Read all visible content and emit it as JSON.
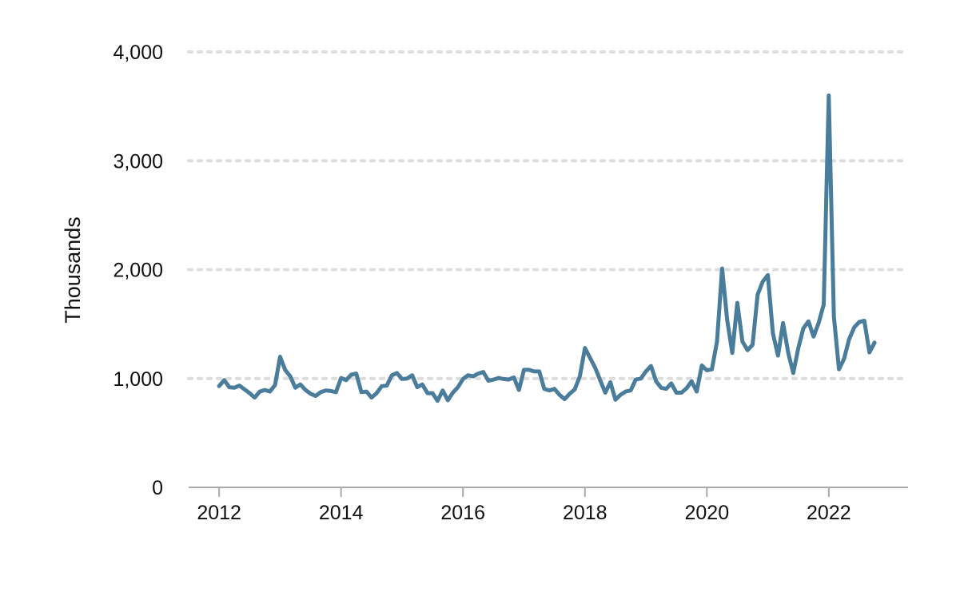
{
  "chart_data": {
    "type": "line",
    "title": "",
    "xlabel": "",
    "ylabel": "Thousands",
    "xlim": [
      2011.5,
      2023.3
    ],
    "ylim": [
      0,
      4000
    ],
    "grid": "horizontal dotted",
    "legend": "none",
    "colors": {
      "line": "#4a7c9c",
      "grid": "#dddddd",
      "axis": "#aaaaaa"
    },
    "x_ticks": [
      {
        "value": 2012,
        "label": "2012"
      },
      {
        "value": 2014,
        "label": "2014"
      },
      {
        "value": 2016,
        "label": "2016"
      },
      {
        "value": 2018,
        "label": "2018"
      },
      {
        "value": 2020,
        "label": "2020"
      },
      {
        "value": 2022,
        "label": "2022"
      }
    ],
    "y_ticks": [
      {
        "value": 0,
        "label": "0"
      },
      {
        "value": 1000,
        "label": "1,000"
      },
      {
        "value": 2000,
        "label": "2,000"
      },
      {
        "value": 3000,
        "label": "3,000"
      },
      {
        "value": 4000,
        "label": "4,000"
      }
    ],
    "series": [
      {
        "x": [
          2012.0,
          2012.083,
          2012.167,
          2012.25,
          2012.333,
          2012.417,
          2012.5,
          2012.583,
          2012.667,
          2012.75,
          2012.833,
          2012.917,
          2013.0,
          2013.083,
          2013.167,
          2013.25,
          2013.333,
          2013.417,
          2013.5,
          2013.583,
          2013.667,
          2013.75,
          2013.833,
          2013.917,
          2014.0,
          2014.083,
          2014.167,
          2014.25,
          2014.333,
          2014.417,
          2014.5,
          2014.583,
          2014.667,
          2014.75,
          2014.833,
          2014.917,
          2015.0,
          2015.083,
          2015.167,
          2015.25,
          2015.333,
          2015.417,
          2015.5,
          2015.583,
          2015.667,
          2015.75,
          2015.833,
          2015.917,
          2016.0,
          2016.083,
          2016.167,
          2016.25,
          2016.333,
          2016.417,
          2016.5,
          2016.583,
          2016.667,
          2016.75,
          2016.833,
          2016.917,
          2017.0,
          2017.083,
          2017.167,
          2017.25,
          2017.333,
          2017.417,
          2017.5,
          2017.583,
          2017.667,
          2017.75,
          2017.833,
          2017.917,
          2018.0,
          2018.083,
          2018.167,
          2018.25,
          2018.333,
          2018.417,
          2018.5,
          2018.583,
          2018.667,
          2018.75,
          2018.833,
          2018.917,
          2019.0,
          2019.083,
          2019.167,
          2019.25,
          2019.333,
          2019.417,
          2019.5,
          2019.583,
          2019.667,
          2019.75,
          2019.833,
          2019.917,
          2020.0,
          2020.083,
          2020.167,
          2020.25,
          2020.333,
          2020.417,
          2020.5,
          2020.583,
          2020.667,
          2020.75,
          2020.833,
          2020.917,
          2021.0,
          2021.083,
          2021.167,
          2021.25,
          2021.333,
          2021.417,
          2021.5,
          2021.583,
          2021.667,
          2021.75,
          2021.833,
          2021.917,
          2022.0,
          2022.083,
          2022.167,
          2022.25,
          2022.333,
          2022.417,
          2022.5,
          2022.583,
          2022.667,
          2022.75
        ],
        "values": [
          930,
          985,
          920,
          915,
          935,
          900,
          865,
          825,
          880,
          895,
          880,
          940,
          1200,
          1080,
          1020,
          915,
          945,
          895,
          860,
          840,
          875,
          890,
          885,
          875,
          1005,
          985,
          1035,
          1045,
          875,
          880,
          825,
          865,
          930,
          935,
          1030,
          1050,
          995,
          1000,
          1030,
          920,
          945,
          865,
          865,
          795,
          890,
          800,
          870,
          920,
          995,
          1030,
          1020,
          1045,
          1060,
          980,
          990,
          1005,
          995,
          990,
          1010,
          895,
          1080,
          1080,
          1065,
          1065,
          905,
          890,
          905,
          850,
          810,
          860,
          900,
          1020,
          1280,
          1190,
          1100,
          985,
          870,
          965,
          805,
          850,
          880,
          890,
          990,
          1000,
          1065,
          1115,
          975,
          915,
          905,
          955,
          870,
          870,
          910,
          975,
          880,
          1120,
          1075,
          1085,
          1340,
          2010,
          1540,
          1235,
          1695,
          1340,
          1260,
          1310,
          1770,
          1890,
          1950,
          1415,
          1210,
          1510,
          1240,
          1050,
          1280,
          1460,
          1525,
          1385,
          1510,
          1680,
          3600,
          1570,
          1085,
          1180,
          1360,
          1470,
          1520,
          1530,
          1240,
          1330
        ]
      }
    ]
  }
}
